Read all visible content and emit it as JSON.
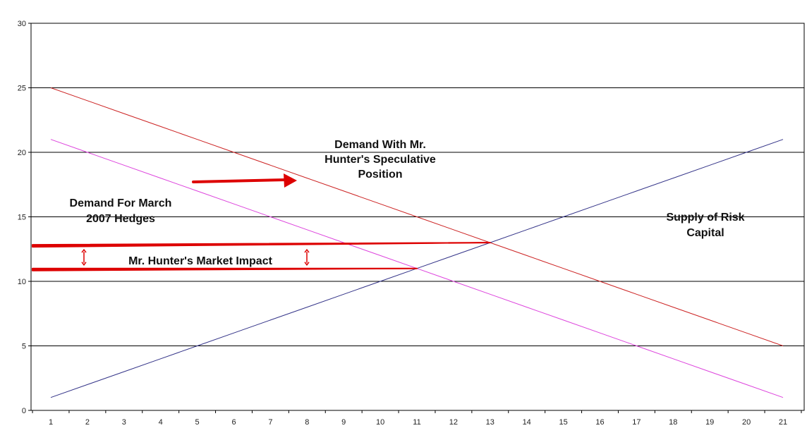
{
  "chart_data": {
    "type": "line",
    "title": "",
    "xlabel": "",
    "ylabel": "",
    "x": [
      1,
      2,
      3,
      4,
      5,
      6,
      7,
      8,
      9,
      10,
      11,
      12,
      13,
      14,
      15,
      16,
      17,
      18,
      19,
      20,
      21
    ],
    "xlim": [
      1,
      21
    ],
    "ylim": [
      0,
      30
    ],
    "yticks": [
      0,
      5,
      10,
      15,
      20,
      25,
      30
    ],
    "grid": "horizontal",
    "series": [
      {
        "color": "#cc2222",
        "values": [
          25,
          24,
          23,
          22,
          21,
          20,
          19,
          18,
          17,
          16,
          15,
          14,
          13,
          12,
          11,
          10,
          9,
          8,
          7,
          6,
          5
        ]
      },
      {
        "color": "#dd44dd",
        "values": [
          21,
          20,
          19,
          18,
          17,
          16,
          15,
          14,
          13,
          12,
          11,
          10,
          9,
          8,
          7,
          6,
          5,
          4,
          3,
          2,
          1
        ]
      },
      {
        "color": "#333388",
        "values": [
          1,
          2,
          3,
          4,
          5,
          6,
          7,
          8,
          9,
          10,
          11,
          12,
          13,
          14,
          15,
          16,
          17,
          18,
          19,
          20,
          21
        ]
      }
    ],
    "annotations": {
      "demand_speculative": [
        "Demand With Mr.",
        "Hunter's Speculative",
        "Position"
      ],
      "demand_hedges": [
        "Demand For March",
        "2007 Hedges"
      ],
      "market_impact": "Mr. Hunter's Market Impact",
      "supply": [
        "Supply of Risk",
        "Capital"
      ]
    },
    "markers": {
      "upper_level_y": 13,
      "lower_level_y": 11,
      "arrow_color": "#dd0000"
    }
  }
}
